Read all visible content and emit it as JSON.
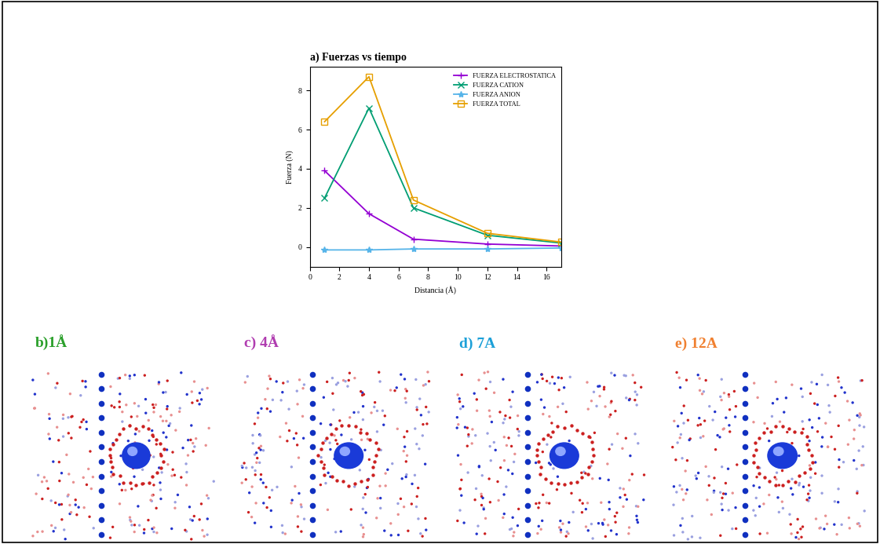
{
  "chart_data": {
    "type": "line",
    "title": "a) Fuerzas vs tiempo",
    "x_label": "Distancia (Å)",
    "y_label": "Fuerza (N)",
    "x": [
      1,
      4,
      7,
      12,
      17
    ],
    "series": [
      {
        "name": "FUERZA ELECTROSTATICA",
        "color": "#9400d3",
        "marker": "plus",
        "values": [
          3.9,
          1.7,
          0.4,
          0.15,
          0.05
        ]
      },
      {
        "name": "FUERZA CATION",
        "color": "#009e73",
        "marker": "cross",
        "values": [
          2.5,
          7.1,
          2.0,
          0.6,
          0.2
        ]
      },
      {
        "name": "FUERZA ANION",
        "color": "#56b4e9",
        "marker": "star",
        "values": [
          -0.15,
          -0.15,
          -0.1,
          -0.1,
          -0.05
        ]
      },
      {
        "name": "FUERZA TOTAL",
        "color": "#e69f00",
        "marker": "square",
        "values": [
          6.4,
          8.7,
          2.4,
          0.7,
          0.25
        ]
      }
    ],
    "xlim": [
      0,
      17
    ],
    "xticks": [
      0,
      2,
      4,
      6,
      8,
      10,
      12,
      14,
      16
    ],
    "ylim": [
      -1,
      9.2
    ],
    "yticks": [
      0,
      2,
      4,
      6,
      8
    ],
    "grid": false,
    "legend": "upper right"
  },
  "panels": [
    {
      "label": "b)1Å",
      "color": "#2ca02c"
    },
    {
      "label": "c) 4Å",
      "color": "#b03cb0"
    },
    {
      "label": "d) 7A",
      "color": "#1ca0d8"
    },
    {
      "label": "e) 12A",
      "color": "#f08030"
    }
  ]
}
